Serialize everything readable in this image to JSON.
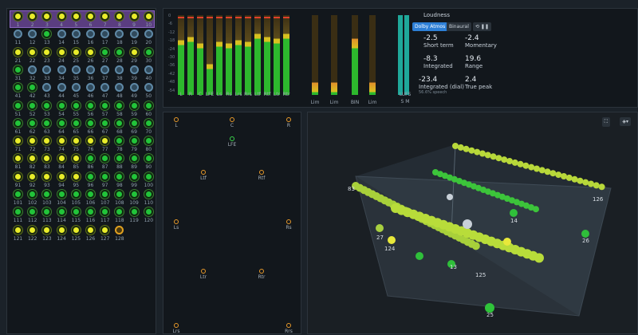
{
  "objects": {
    "labels": [
      "1",
      "2",
      "3",
      "4",
      "5",
      "6",
      "7",
      "8",
      "9",
      "10",
      "11",
      "12",
      "13",
      "14",
      "15",
      "16",
      "17",
      "18",
      "19",
      "20",
      "21",
      "22",
      "23",
      "24",
      "25",
      "26",
      "27",
      "28",
      "29",
      "30",
      "31",
      "32",
      "33",
      "34",
      "35",
      "36",
      "37",
      "38",
      "39",
      "40",
      "41",
      "42",
      "43",
      "44",
      "45",
      "46",
      "47",
      "48",
      "49",
      "50",
      "51",
      "52",
      "53",
      "54",
      "55",
      "56",
      "57",
      "58",
      "59",
      "60",
      "61",
      "62",
      "63",
      "64",
      "65",
      "66",
      "67",
      "68",
      "69",
      "70",
      "71",
      "72",
      "73",
      "74",
      "75",
      "76",
      "77",
      "78",
      "79",
      "80",
      "81",
      "82",
      "83",
      "84",
      "85",
      "86",
      "87",
      "88",
      "89",
      "90",
      "91",
      "92",
      "93",
      "94",
      "95",
      "96",
      "97",
      "98",
      "99",
      "100",
      "101",
      "102",
      "103",
      "104",
      "105",
      "106",
      "107",
      "108",
      "109",
      "110",
      "111",
      "112",
      "113",
      "114",
      "115",
      "116",
      "117",
      "118",
      "119",
      "120",
      "121",
      "122",
      "123",
      "124",
      "125",
      "126",
      "127",
      "128"
    ]
  },
  "meters": {
    "channels": [
      "L",
      "R",
      "C",
      "LFE",
      "Ls",
      "Rs",
      "Lrs",
      "Rrs",
      "Ltf",
      "Rtf",
      "Ltr",
      "Rtr"
    ],
    "levels": [
      0.62,
      0.66,
      0.58,
      0.32,
      0.6,
      0.58,
      0.62,
      0.6,
      0.7,
      0.66,
      0.64,
      0.7
    ],
    "extra": [
      "Lim",
      "Lim",
      "BIN",
      "Lim"
    ],
    "scale": [
      "0",
      "-6",
      "-12",
      "-18",
      "-24",
      "-30",
      "-36",
      "-42",
      "-48",
      "-54"
    ],
    "lufs_label": "LUFS",
    "lufs_sub": [
      "S",
      "M"
    ]
  },
  "loudness": {
    "title": "Loudness",
    "mode_active": "Dolby Atmos",
    "mode_other": "Binaural",
    "short_term": "-2.5",
    "short_term_label": "Short term",
    "momentary": "-2.4",
    "momentary_label": "Momentary",
    "integrated": "-8.3",
    "integrated_label": "Integrated",
    "range": "19.6",
    "range_label": "Range",
    "integrated_dial": "-23.4",
    "integrated_dial_label": "Integrated (dial)",
    "speech_pct": "56.6% speech",
    "true_peak": "2.4",
    "true_peak_label": "True peak"
  },
  "speakers": [
    "L",
    "C",
    "R",
    "LFE",
    "Ltf",
    "Rtf",
    "Ls",
    "Rs",
    "Ltr",
    "Rtr",
    "Lrs",
    "Rrs"
  ],
  "view3d": {
    "labels": [
      "83",
      "25",
      "26",
      "125",
      "126",
      "14",
      "13",
      "27",
      "124"
    ]
  }
}
